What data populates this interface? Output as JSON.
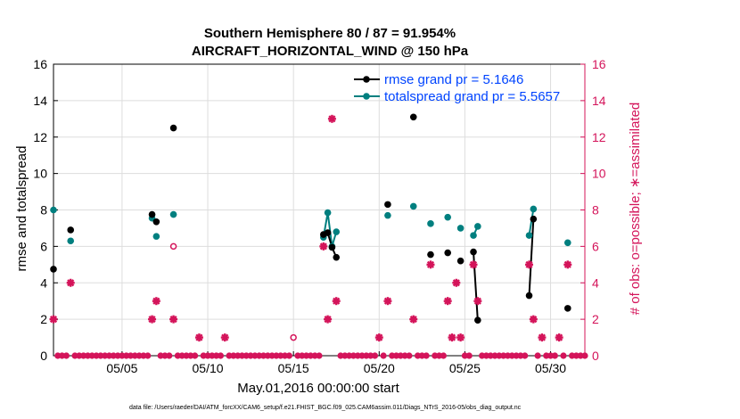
{
  "chart_data": {
    "type": "scatter",
    "title": "Southern Hemisphere 80 / 87 = 91.954%",
    "subtitle": "AIRCRAFT_HORIZONTAL_WIND @ 150 hPa",
    "xlabel": "May.01,2016 00:00:00 start",
    "ylabel": "rmse and totalspread",
    "y2label": "# of obs: o=possible; ∗=assimilated",
    "footer": "data file: /Users/raeder/DAI/ATM_forcXX/CAM6_setup/f.e21.FHIST_BGC.f09_025.CAM6assim.011/Diags_NTrS_2016-05/obs_diag_output.nc",
    "xlim": [
      1,
      32
    ],
    "ylim": [
      0,
      16
    ],
    "y2lim": [
      0,
      16
    ],
    "grid": true,
    "legend_placement": "top-right",
    "xticks": [
      5,
      10,
      15,
      20,
      25,
      30
    ],
    "xticklabels": [
      "05/05",
      "05/10",
      "05/15",
      "05/20",
      "05/25",
      "05/30"
    ],
    "yticks": [
      0,
      2,
      4,
      6,
      8,
      10,
      12,
      14,
      16
    ],
    "yticklabels": [
      "0",
      "2",
      "4",
      "6",
      "8",
      "10",
      "12",
      "14",
      "16"
    ],
    "colors": {
      "rmse": "#000000",
      "spread": "#007f7f",
      "obs": "#d4145a",
      "legend_text": "#0044ff"
    },
    "series": [
      {
        "name": "rmse grand pr = 5.1646",
        "x": [
          1.0,
          2.0,
          6.75,
          7.0,
          8.0,
          16.75,
          17.0,
          17.25,
          17.5,
          20.5,
          22.0,
          23.0,
          24.0,
          24.75,
          25.5,
          25.75,
          28.75,
          29.0,
          31.0
        ],
        "values": [
          4.75,
          6.9,
          7.75,
          7.35,
          12.5,
          6.65,
          6.75,
          5.95,
          5.4,
          8.3,
          13.1,
          5.55,
          5.65,
          5.2,
          5.7,
          1.95,
          3.3,
          7.5,
          2.6
        ]
      },
      {
        "name": "totalspread grand pr = 5.5657",
        "x": [
          1.0,
          2.0,
          6.75,
          7.0,
          8.0,
          16.75,
          17.0,
          17.25,
          17.5,
          20.5,
          22.0,
          23.0,
          24.0,
          24.75,
          25.5,
          25.75,
          28.75,
          29.0,
          31.0
        ],
        "values": [
          8.0,
          6.3,
          7.55,
          6.55,
          7.75,
          6.5,
          7.85,
          6.0,
          6.8,
          7.7,
          8.2,
          7.25,
          7.6,
          7.0,
          6.6,
          7.1,
          6.6,
          8.05,
          6.2
        ]
      },
      {
        "name": "possible obs",
        "x": [
          8.0,
          15.0
        ],
        "values": [
          6.0,
          1.0
        ]
      },
      {
        "name": "assimilated obs",
        "x": [
          1.0,
          2.0,
          6.75,
          7.0,
          8.0,
          9.5,
          11.0,
          16.75,
          17.0,
          17.25,
          17.5,
          20.0,
          20.5,
          22.0,
          23.0,
          24.0,
          24.25,
          24.5,
          24.75,
          25.5,
          25.75,
          28.75,
          29.0,
          29.5,
          30.5,
          31.0
        ],
        "values": [
          2,
          4,
          2,
          3,
          2,
          1,
          1,
          6,
          2,
          13,
          3,
          1,
          3,
          2,
          5,
          3,
          1,
          4,
          1,
          5,
          3,
          5,
          2,
          1,
          1,
          5
        ]
      }
    ],
    "zero_obs_x_step": 0.25,
    "connected_segments": [
      [
        25.5,
        25.75
      ],
      [
        28.75,
        29.0
      ],
      [
        16.75,
        17.0,
        17.25,
        17.5
      ]
    ]
  }
}
